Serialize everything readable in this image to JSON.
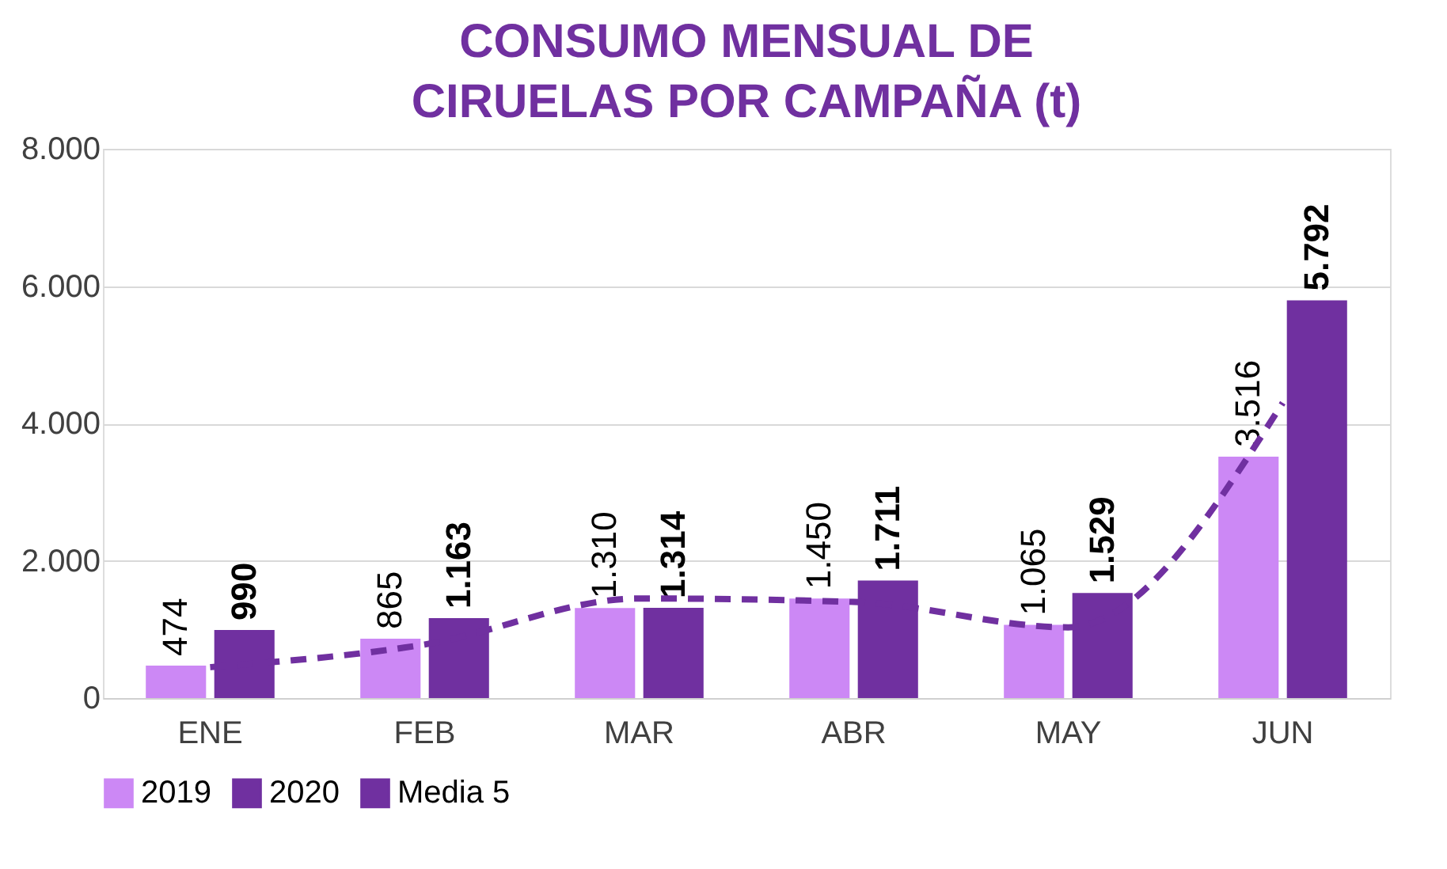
{
  "chart_data": {
    "type": "bar",
    "title": "CONSUMO MENSUAL DE CIRUELAS POR CAMPAÑA (t)",
    "categories": [
      "ENE",
      "FEB",
      "MAR",
      "ABR",
      "MAY",
      "JUN"
    ],
    "series": [
      {
        "name": "2019",
        "color": "#cc88f5",
        "values": [
          474,
          865,
          1310,
          1450,
          1065,
          3516
        ],
        "value_labels": [
          "474",
          "865",
          "1.310",
          "1.450",
          "1.065",
          "3.516"
        ]
      },
      {
        "name": "2020",
        "color": "#7030a0",
        "values": [
          990,
          1163,
          1314,
          1711,
          1529,
          5792
        ],
        "value_labels": [
          "990",
          "1.163",
          "1.314",
          "1.711",
          "1.529",
          "5.792"
        ]
      },
      {
        "name": "Media 5",
        "type": "line",
        "color": "#7030a0",
        "line_style": "dashed",
        "values": [
          450,
          780,
          1450,
          1400,
          1030,
          4300
        ]
      }
    ],
    "ylim": [
      0,
      8000
    ],
    "yticks": [
      0,
      {
        "value": 2000,
        "label": "2.000"
      },
      {
        "value": 4000,
        "label": "4.000"
      },
      {
        "value": 6000,
        "label": "6.000"
      },
      {
        "value": 8000,
        "label": "8.000"
      }
    ],
    "grid": "y",
    "legend": "bottom"
  }
}
